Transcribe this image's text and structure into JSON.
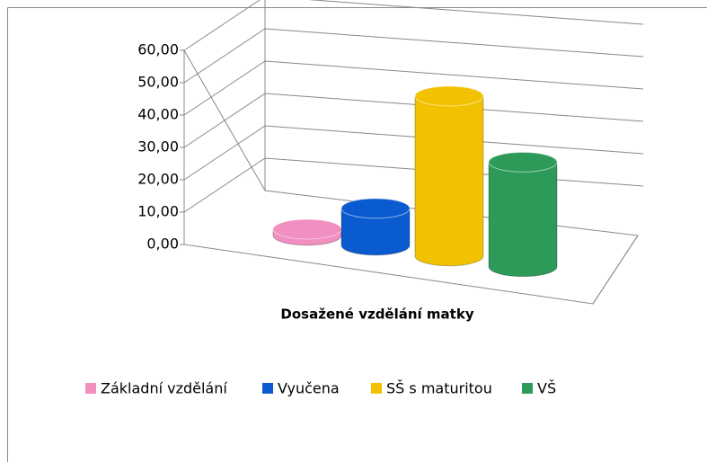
{
  "chart_data": {
    "type": "bar3d",
    "x_label": "Dosažené vzdělání matky",
    "series": [
      {
        "name": "Základní vzdělání",
        "color": "#f08fc0",
        "values": [
          2
        ]
      },
      {
        "name": "Vyučena",
        "color": "#0a5ad0",
        "values": [
          12
        ]
      },
      {
        "name": "SŠ s maturitou",
        "color": "#f2c200",
        "values": [
          52
        ]
      },
      {
        "name": "VŠ",
        "color": "#2e9a5a",
        "values": [
          34
        ]
      }
    ],
    "ylim": [
      0,
      60
    ],
    "yticks": [
      {
        "value": 0,
        "label": "0,00"
      },
      {
        "value": 10,
        "label": "10,00"
      },
      {
        "value": 20,
        "label": "20,00"
      },
      {
        "value": 30,
        "label": "30,00"
      },
      {
        "value": 40,
        "label": "40,00"
      },
      {
        "value": 50,
        "label": "50,00"
      },
      {
        "value": 60,
        "label": "60,00"
      }
    ],
    "grid": true
  }
}
